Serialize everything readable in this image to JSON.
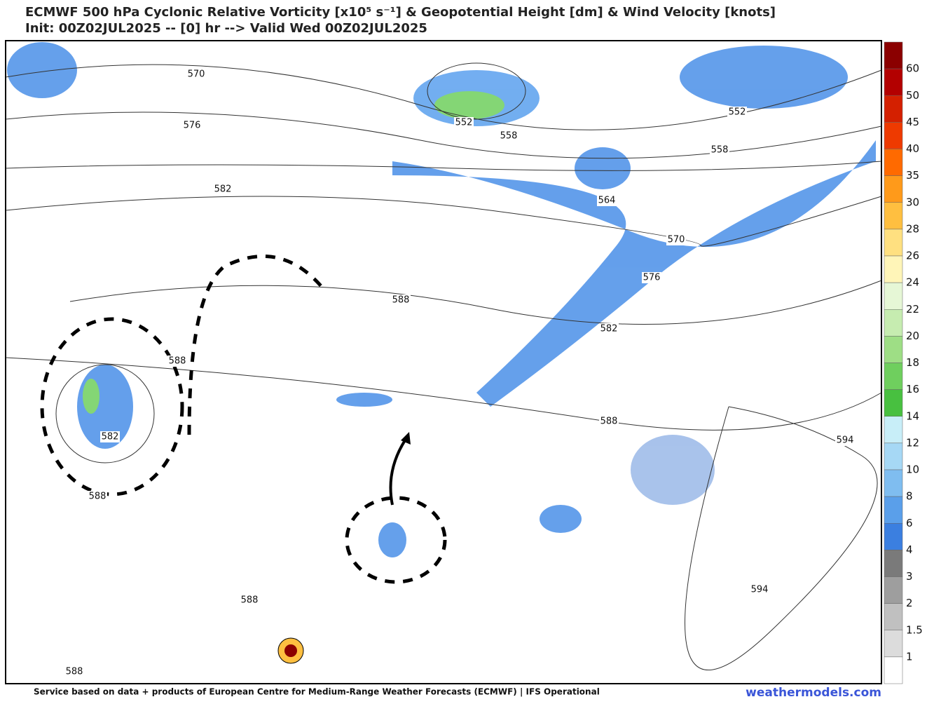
{
  "header": {
    "title": "ECMWF 500 hPa Cyclonic Relative Vorticity [x10⁵ s⁻¹] & Geopotential Height [dm] & Wind Velocity [knots]",
    "subtitle": "Init: 00Z02JUL2025 -- [0] hr --> Valid Wed 00Z02JUL2025"
  },
  "contour_labels": [
    "570",
    "576",
    "582",
    "552",
    "558",
    "552",
    "558",
    "564",
    "570",
    "576",
    "582",
    "588",
    "588",
    "582",
    "588",
    "588",
    "594",
    "594",
    "588",
    "588"
  ],
  "colorbar": {
    "labels": [
      "60",
      "50",
      "45",
      "40",
      "35",
      "30",
      "28",
      "26",
      "24",
      "22",
      "20",
      "18",
      "16",
      "14",
      "12",
      "10",
      "8",
      "6",
      "4",
      "3",
      "2",
      "1.5",
      "1"
    ],
    "colors": [
      "#8b0000",
      "#b30000",
      "#d42000",
      "#ee3a00",
      "#ff6a00",
      "#ff9a1a",
      "#ffbf40",
      "#ffe080",
      "#fff5b8",
      "#e6f7d6",
      "#c6ecb0",
      "#9ede85",
      "#6fcf5e",
      "#48c040",
      "#c8eef8",
      "#a6d8f5",
      "#7fbdf0",
      "#5a9fea",
      "#3b7fe0",
      "#7a7a7a",
      "#9e9e9e",
      "#c0c0c0",
      "#dcdcdc",
      "#ffffff"
    ]
  },
  "footer": {
    "source": "Service based on data + products of European Centre for Medium-Range Weather Forecasts (ECMWF) | IFS Operational",
    "brand": "weathermodels.com"
  }
}
